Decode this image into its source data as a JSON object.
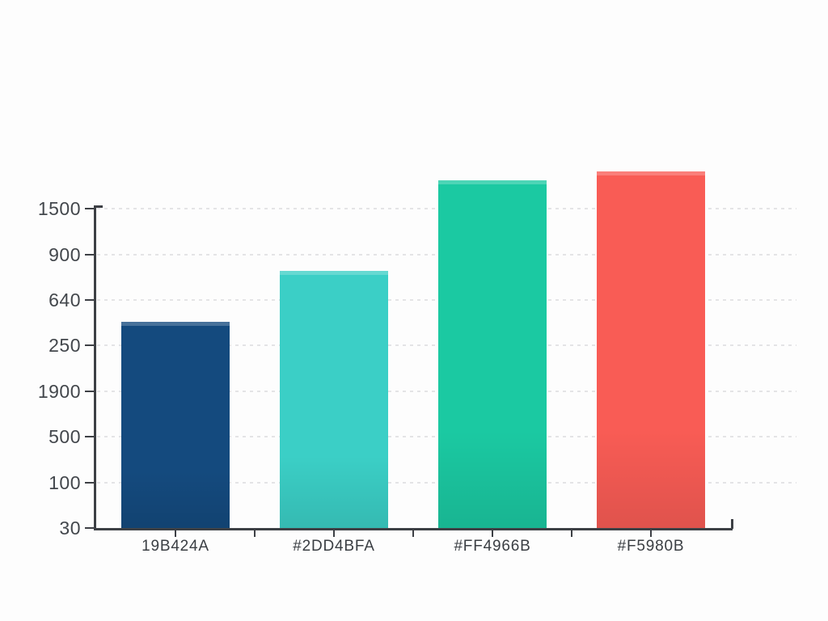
{
  "chart_data": {
    "type": "bar",
    "title": "",
    "xlabel": "",
    "ylabel": "",
    "categories": [
      "19B424A",
      "#2DD4BFA",
      "#FF4966B",
      "#F5980B"
    ],
    "series": [
      {
        "name": "bars",
        "values_tick_units": [
          4.52,
          5.64,
          7.62,
          7.82
        ],
        "colors": [
          "#144a7e",
          "#3bcfc6",
          "#1bc9a2",
          "#f95c55"
        ]
      }
    ],
    "y_axis": {
      "tick_labels_bottom_to_top": [
        "30",
        "100",
        "500",
        "1900",
        "250",
        "640",
        "900",
        "1500"
      ]
    },
    "x_axis": {
      "minor_tick_count": 7
    },
    "grid": "horizontal-dashed",
    "legend_position": "none",
    "colors": {
      "axis": "#3d4045",
      "tick_label": "#43474c",
      "gridline": "#e4e4e6",
      "background": "#fdfdfd"
    }
  }
}
